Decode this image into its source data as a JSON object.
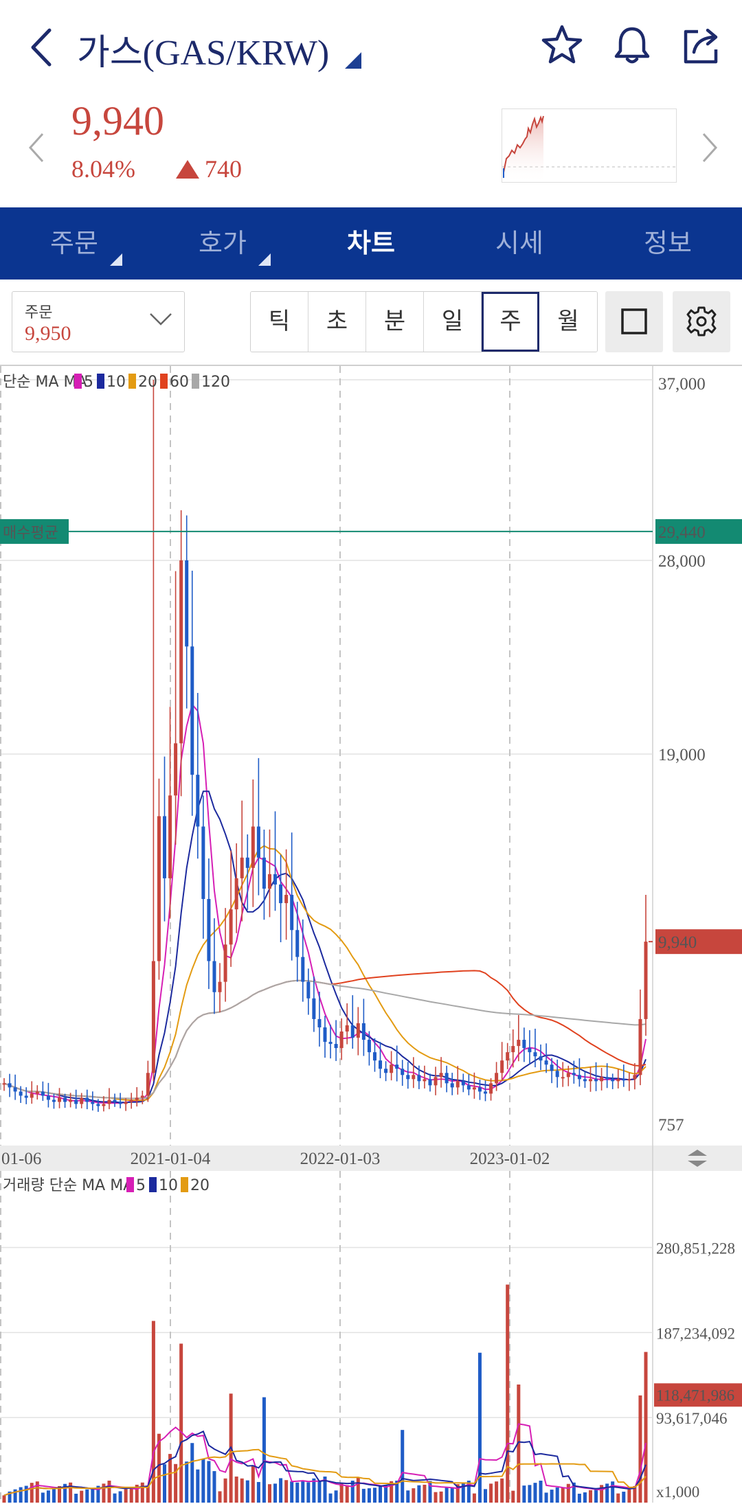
{
  "header": {
    "title": "가스(GAS/KRW)",
    "icons": [
      "back-arrow-icon",
      "star-icon",
      "bell-icon",
      "share-icon"
    ]
  },
  "ticker": {
    "price": "9,940",
    "change_pct": "8.04%",
    "change_abs": "740",
    "direction": "up",
    "color": "#c7463d"
  },
  "tabs": [
    {
      "label": "주문",
      "active": false,
      "has_menu": true
    },
    {
      "label": "호가",
      "active": false,
      "has_menu": true
    },
    {
      "label": "차트",
      "active": true,
      "has_menu": false
    },
    {
      "label": "시세",
      "active": false,
      "has_menu": false
    },
    {
      "label": "정보",
      "active": false,
      "has_menu": false
    }
  ],
  "order_select": {
    "label": "주문",
    "value": "9,950"
  },
  "periods": [
    {
      "label": "틱",
      "selected": false
    },
    {
      "label": "초",
      "selected": false
    },
    {
      "label": "분",
      "selected": false
    },
    {
      "label": "일",
      "selected": false
    },
    {
      "label": "주",
      "selected": true
    },
    {
      "label": "월",
      "selected": false
    }
  ],
  "colors": {
    "brand": "#0b3590",
    "up": "#c7463d",
    "down": "#1f5cc7",
    "avg_line": "#138a72"
  },
  "chart_data": [
    {
      "type": "candlestick",
      "interval": "weekly",
      "legend_title": "단순 MA",
      "ma_series": [
        {
          "name": "5",
          "color": "#d61fb5"
        },
        {
          "name": "10",
          "color": "#1c2a9e"
        },
        {
          "name": "20",
          "color": "#e39b12"
        },
        {
          "name": "60",
          "color": "#e0421f"
        },
        {
          "name": "120",
          "color": "#a8a8a8"
        }
      ],
      "y_ticks": [
        "37,000",
        "28,000",
        "19,000",
        "757"
      ],
      "y_tick_values": [
        37000,
        28000,
        19000,
        757
      ],
      "ylim": [
        757,
        37000
      ],
      "x_ticks": [
        "01-06",
        "2021-01-04",
        "2022-01-03",
        "2023-01-02"
      ],
      "avg_buy_label": "매수평균",
      "avg_buy_value": 29440,
      "avg_buy_text": "29,440",
      "current_value": 9940,
      "current_text": "9,940",
      "close_approx": [
        3100,
        2900,
        2700,
        2500,
        2400,
        2600,
        2700,
        2500,
        2300,
        2200,
        2400,
        2200,
        2300,
        2100,
        2400,
        2200,
        2100,
        2000,
        2100,
        2300,
        2200,
        2100,
        2200,
        2300,
        2400,
        2500,
        3600,
        9000,
        16000,
        13000,
        17000,
        19500,
        28000,
        24000,
        18000,
        15500,
        12000,
        9000,
        7500,
        8000,
        9800,
        11500,
        13000,
        14000,
        13500,
        15500,
        14000,
        12500,
        13200,
        12700,
        11800,
        12200,
        10500,
        9200,
        8000,
        7200,
        6200,
        5800,
        5100,
        5000,
        4800,
        5600,
        5900,
        5300,
        6000,
        5200,
        4600,
        4200,
        3800,
        3600,
        4000,
        3800,
        3500,
        3300,
        3500,
        3200,
        3300,
        3000,
        3400,
        3600,
        3100,
        2900,
        3200,
        3000,
        2800,
        2900,
        2700,
        2600,
        3100,
        3600,
        4200,
        4600,
        4900,
        5200,
        4800,
        4600,
        4400,
        4200,
        4000,
        3700,
        3400,
        3400,
        3600,
        3500,
        3300,
        3200,
        3300,
        3200,
        3400,
        3300,
        3200,
        3300,
        3250,
        3300,
        3500,
        6200,
        9940
      ]
    },
    {
      "type": "bar",
      "title": "거래량",
      "legend_title": "단순 MA",
      "ma_series": [
        {
          "name": "5",
          "color": "#d61fb5"
        },
        {
          "name": "10",
          "color": "#1c2a9e"
        },
        {
          "name": "20",
          "color": "#e39b12"
        }
      ],
      "y_ticks": [
        "280,851,228",
        "187,234,092",
        "93,617,046"
      ],
      "y_tick_values": [
        280851228,
        187234092,
        93617046
      ],
      "ylim": [
        1000,
        350000000
      ],
      "unit_label": "x1,000",
      "current_text": "118,471,986",
      "current_value": 118471986
    }
  ]
}
